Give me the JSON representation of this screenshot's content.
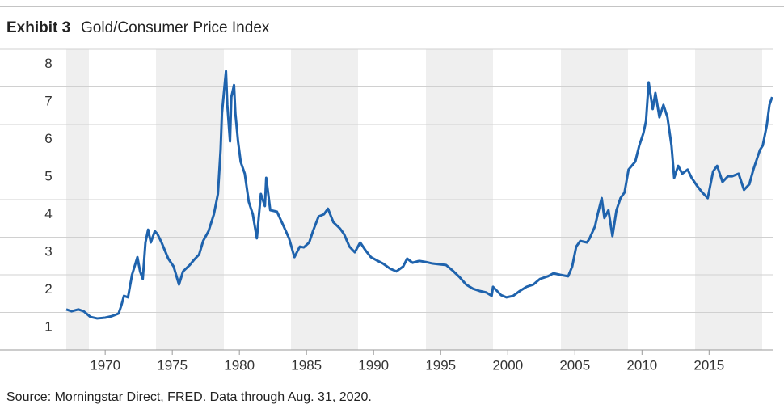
{
  "chart_data": {
    "type": "line",
    "title": "Exhibit 3",
    "subtitle": "Gold/Consumer Price Index",
    "source": "Source: Morningstar Direct, FRED. Data through Aug. 31, 2020.",
    "x": [
      1967.1,
      1967.5,
      1968.0,
      1968.4,
      1968.9,
      1969.4,
      1970.0,
      1970.5,
      1971.0,
      1971.2,
      1971.4,
      1971.7,
      1972.0,
      1972.4,
      1972.6,
      1972.8,
      1973.0,
      1973.2,
      1973.4,
      1973.7,
      1973.9,
      1974.2,
      1974.7,
      1975.1,
      1975.5,
      1975.8,
      1976.3,
      1976.6,
      1977.0,
      1977.3,
      1977.7,
      1978.1,
      1978.4,
      1978.6,
      1978.7,
      1979.0,
      1979.1,
      1979.3,
      1979.4,
      1979.6,
      1979.7,
      1979.9,
      1980.1,
      1980.4,
      1980.7,
      1981.0,
      1981.3,
      1981.6,
      1981.9,
      1982.0,
      1982.3,
      1982.8,
      1983.3,
      1983.7,
      1984.1,
      1984.5,
      1984.8,
      1985.2,
      1985.5,
      1985.9,
      1986.3,
      1986.6,
      1987.0,
      1987.5,
      1987.8,
      1988.2,
      1988.6,
      1989.0,
      1989.4,
      1989.8,
      1990.2,
      1990.7,
      1991.2,
      1991.7,
      1992.2,
      1992.5,
      1992.9,
      1993.4,
      1993.9,
      1994.4,
      1994.9,
      1995.4,
      1995.9,
      1996.4,
      1996.9,
      1997.4,
      1997.9,
      1998.4,
      1998.8,
      1998.9,
      1999.5,
      1999.9,
      2000.4,
      2000.9,
      2001.4,
      2001.9,
      2002.4,
      2003.0,
      2003.4,
      2003.9,
      2004.5,
      2004.8,
      2005.1,
      2005.4,
      2005.9,
      2006.1,
      2006.5,
      2006.7,
      2007.0,
      2007.2,
      2007.5,
      2007.8,
      2008.1,
      2008.4,
      2008.7,
      2009.0,
      2009.5,
      2009.8,
      2010.1,
      2010.3,
      2010.5,
      2010.8,
      2011.0,
      2011.3,
      2011.6,
      2011.9,
      2012.2,
      2012.4,
      2012.7,
      2013.0,
      2013.4,
      2013.7,
      2014.1,
      2014.5,
      2014.9,
      2015.3,
      2015.6,
      2016.0,
      2016.4,
      2016.7,
      2017.2,
      2017.6,
      2018.0,
      2018.3,
      2018.6,
      2018.8,
      2019.0,
      2019.3,
      2019.5,
      2019.7
    ],
    "series": [
      {
        "name": "Gold/CPI",
        "color": "#1f63ad",
        "values": [
          1.08,
          1.03,
          1.08,
          1.03,
          0.88,
          0.84,
          0.86,
          0.9,
          0.97,
          1.18,
          1.44,
          1.4,
          2.0,
          2.47,
          2.09,
          1.89,
          2.86,
          3.2,
          2.86,
          3.16,
          3.08,
          2.86,
          2.43,
          2.22,
          1.74,
          2.09,
          2.26,
          2.39,
          2.54,
          2.9,
          3.16,
          3.61,
          4.15,
          5.33,
          6.3,
          7.42,
          6.52,
          5.55,
          6.73,
          7.05,
          6.3,
          5.55,
          5.0,
          4.69,
          3.94,
          3.61,
          2.97,
          4.15,
          3.83,
          4.58,
          3.72,
          3.68,
          3.29,
          2.97,
          2.47,
          2.75,
          2.73,
          2.86,
          3.18,
          3.55,
          3.61,
          3.76,
          3.4,
          3.23,
          3.08,
          2.75,
          2.6,
          2.86,
          2.65,
          2.47,
          2.39,
          2.3,
          2.17,
          2.09,
          2.22,
          2.43,
          2.32,
          2.37,
          2.34,
          2.3,
          2.28,
          2.26,
          2.11,
          1.94,
          1.74,
          1.63,
          1.57,
          1.53,
          1.44,
          1.68,
          1.46,
          1.4,
          1.44,
          1.57,
          1.68,
          1.74,
          1.89,
          1.96,
          2.04,
          2.0,
          1.96,
          2.22,
          2.75,
          2.9,
          2.86,
          2.97,
          3.29,
          3.61,
          4.04,
          3.51,
          3.72,
          3.03,
          3.72,
          4.04,
          4.19,
          4.8,
          5.01,
          5.44,
          5.76,
          6.09,
          7.12,
          6.41,
          6.84,
          6.19,
          6.52,
          6.19,
          5.44,
          4.58,
          4.9,
          4.69,
          4.8,
          4.58,
          4.37,
          4.19,
          4.04,
          4.75,
          4.9,
          4.47,
          4.62,
          4.62,
          4.69,
          4.26,
          4.41,
          4.8,
          5.12,
          5.33,
          5.44,
          5.98,
          6.52,
          6.73
        ]
      }
    ],
    "xlim": [
      1967.1,
      2019.8
    ],
    "xticks": [
      1970,
      1975,
      1980,
      1985,
      1990,
      1995,
      2000,
      2005,
      2010,
      2015
    ],
    "ylim": [
      0,
      8
    ],
    "yticks": [
      1,
      2,
      3,
      4,
      5,
      6,
      7,
      8
    ],
    "grid": true
  }
}
